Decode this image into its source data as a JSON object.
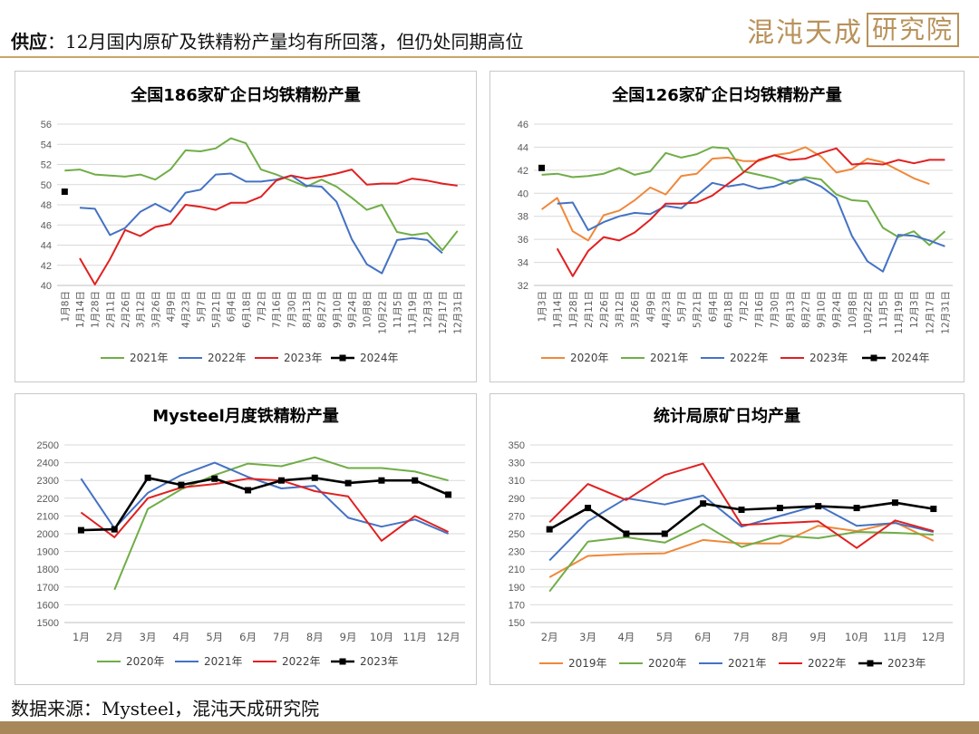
{
  "header": {
    "label": "供应",
    "separator": "：",
    "text": "12月国内原矿及铁精粉产量均有所回落，但仍处同期高位",
    "logo_text": "混沌天成",
    "logo_box_text": "研究院"
  },
  "footer": {
    "source": "数据来源：Mysteel，混沌天成研究院"
  },
  "colors": {
    "orange": "#f0883a",
    "green": "#70ad47",
    "blue": "#4472c4",
    "red": "#e02020",
    "black": "#000000",
    "gold": "#b8925a"
  },
  "chart_data": [
    {
      "type": "line",
      "title": "全国186家矿企日均铁精粉产量",
      "categories": [
        "1月8日",
        "1月14日",
        "1月28日",
        "2月11日",
        "2月26日",
        "3月12日",
        "3月26日",
        "4月9日",
        "4月23日",
        "5月7日",
        "5月21日",
        "6月4日",
        "6月18日",
        "7月2日",
        "7月16日",
        "7月30日",
        "8月13日",
        "8月27日",
        "9月10日",
        "9月24日",
        "10月8日",
        "10月22日",
        "11月5日",
        "11月19日",
        "12月3日",
        "12月17日",
        "12月31日"
      ],
      "ylim": [
        40,
        56
      ],
      "yticks": [
        "40",
        "42",
        "44",
        "46",
        "48",
        "50",
        "52",
        "54",
        "56"
      ],
      "series": [
        {
          "name": "2021年",
          "color": "#70ad47",
          "values": [
            51.4,
            51.5,
            51.0,
            50.9,
            50.8,
            51.0,
            50.5,
            51.5,
            53.4,
            53.3,
            53.6,
            54.6,
            54.1,
            51.5,
            51.0,
            50.4,
            49.8,
            50.5,
            49.8,
            48.7,
            47.5,
            48.0,
            45.3,
            45.0,
            45.2,
            43.5,
            45.4
          ]
        },
        {
          "name": "2022年",
          "color": "#4472c4",
          "values": [
            null,
            47.7,
            47.6,
            45.0,
            45.7,
            47.3,
            48.1,
            47.3,
            49.2,
            49.5,
            51.0,
            51.1,
            50.3,
            50.3,
            50.5,
            50.9,
            49.9,
            49.8,
            48.3,
            44.6,
            42.1,
            41.2,
            44.5,
            44.7,
            44.5,
            43.2,
            null
          ]
        },
        {
          "name": "2023年",
          "color": "#e02020",
          "values": [
            null,
            42.7,
            40.1,
            42.6,
            45.5,
            44.9,
            45.8,
            46.1,
            48.0,
            47.8,
            47.5,
            48.2,
            48.2,
            48.8,
            50.4,
            50.9,
            50.6,
            50.8,
            51.1,
            51.5,
            50.0,
            50.1,
            50.1,
            50.6,
            50.4,
            50.1,
            49.9
          ]
        },
        {
          "name": "2024年",
          "color": "#000000",
          "marker": true,
          "values": [
            49.3,
            null,
            null,
            null,
            null,
            null,
            null,
            null,
            null,
            null,
            null,
            null,
            null,
            null,
            null,
            null,
            null,
            null,
            null,
            null,
            null,
            null,
            null,
            null,
            null,
            null,
            null
          ]
        }
      ]
    },
    {
      "type": "line",
      "title": "全国126家矿企日均铁精粉产量",
      "categories": [
        "1月3日",
        "1月14日",
        "1月28日",
        "2月11日",
        "2月26日",
        "3月12日",
        "3月26日",
        "4月9日",
        "4月23日",
        "5月7日",
        "5月21日",
        "6月4日",
        "6月18日",
        "7月2日",
        "7月16日",
        "7月30日",
        "8月13日",
        "8月27日",
        "9月10日",
        "9月24日",
        "10月8日",
        "10月22日",
        "11月5日",
        "11月19日",
        "12月3日",
        "12月17日",
        "12月31日"
      ],
      "ylim": [
        32,
        46
      ],
      "yticks": [
        "32",
        "34",
        "36",
        "38",
        "40",
        "42",
        "44",
        "46"
      ],
      "series": [
        {
          "name": "2020年",
          "color": "#f0883a",
          "values": [
            38.6,
            39.6,
            36.7,
            35.9,
            38.1,
            38.5,
            39.4,
            40.5,
            39.9,
            41.5,
            41.7,
            43.0,
            43.1,
            42.8,
            42.8,
            43.3,
            43.5,
            44.0,
            43.2,
            41.8,
            42.1,
            43.0,
            42.7,
            42.0,
            41.3,
            40.8,
            null
          ]
        },
        {
          "name": "2021年",
          "color": "#70ad47",
          "values": [
            41.6,
            41.7,
            41.4,
            41.5,
            41.7,
            42.2,
            41.6,
            41.9,
            43.5,
            43.1,
            43.4,
            44.0,
            43.9,
            41.9,
            41.6,
            41.3,
            40.8,
            41.4,
            41.2,
            39.9,
            39.4,
            39.3,
            37.0,
            36.2,
            36.7,
            35.5,
            36.7
          ]
        },
        {
          "name": "2022年",
          "color": "#4472c4",
          "values": [
            null,
            39.1,
            39.2,
            36.8,
            37.5,
            38.0,
            38.3,
            38.2,
            38.9,
            38.7,
            39.8,
            40.9,
            40.6,
            40.8,
            40.4,
            40.6,
            41.1,
            41.2,
            40.6,
            39.6,
            36.3,
            34.1,
            33.2,
            36.4,
            36.3,
            35.9,
            35.4
          ]
        },
        {
          "name": "2023年",
          "color": "#e02020",
          "values": [
            null,
            35.2,
            32.8,
            35.0,
            36.2,
            35.9,
            36.6,
            37.7,
            39.1,
            39.1,
            39.2,
            39.8,
            40.8,
            41.8,
            42.9,
            43.3,
            42.9,
            43.0,
            43.5,
            43.9,
            42.5,
            42.6,
            42.5,
            42.9,
            42.6,
            42.9,
            42.9
          ]
        },
        {
          "name": "2024年",
          "color": "#000000",
          "marker": true,
          "values": [
            42.2,
            null,
            null,
            null,
            null,
            null,
            null,
            null,
            null,
            null,
            null,
            null,
            null,
            null,
            null,
            null,
            null,
            null,
            null,
            null,
            null,
            null,
            null,
            null,
            null,
            null,
            null
          ]
        }
      ]
    },
    {
      "type": "line",
      "title": "Mysteel月度铁精粉产量",
      "categories": [
        "1月",
        "2月",
        "3月",
        "4月",
        "5月",
        "6月",
        "7月",
        "8月",
        "9月",
        "10月",
        "11月",
        "12月"
      ],
      "ylim": [
        1500,
        2500
      ],
      "yticks": [
        "1500",
        "1600",
        "1700",
        "1800",
        "1900",
        "2000",
        "2100",
        "2200",
        "2300",
        "2400",
        "2500"
      ],
      "series": [
        {
          "name": "2020年",
          "color": "#70ad47",
          "values": [
            null,
            1685,
            2140,
            2250,
            2330,
            2395,
            2380,
            2430,
            2370,
            2370,
            2350,
            2300
          ]
        },
        {
          "name": "2021年",
          "color": "#4472c4",
          "values": [
            2310,
            2030,
            2230,
            2330,
            2400,
            2320,
            2255,
            2270,
            2090,
            2040,
            2080,
            2000
          ]
        },
        {
          "name": "2022年",
          "color": "#e02020",
          "values": [
            2120,
            1980,
            2200,
            2260,
            2280,
            2310,
            2300,
            2240,
            2210,
            1960,
            2100,
            2010
          ]
        },
        {
          "name": "2023年",
          "color": "#000000",
          "marker": true,
          "values": [
            2020,
            2025,
            2315,
            2275,
            2310,
            2245,
            2300,
            2315,
            2285,
            2300,
            2300,
            2220
          ]
        }
      ]
    },
    {
      "type": "line",
      "title": "统计局原矿日均产量",
      "categories": [
        "2月",
        "3月",
        "4月",
        "5月",
        "6月",
        "7月",
        "8月",
        "9月",
        "10月",
        "11月",
        "12月"
      ],
      "ylim": [
        150,
        350
      ],
      "yticks": [
        "150",
        "170",
        "190",
        "210",
        "230",
        "250",
        "270",
        "290",
        "310",
        "330",
        "350"
      ],
      "series": [
        {
          "name": "2019年",
          "color": "#f0883a",
          "values": [
            201,
            225,
            227,
            228,
            243,
            239,
            239,
            259,
            253,
            263,
            242
          ]
        },
        {
          "name": "2020年",
          "color": "#70ad47",
          "values": [
            185,
            241,
            246,
            240,
            261,
            235,
            248,
            245,
            252,
            251,
            249
          ]
        },
        {
          "name": "2021年",
          "color": "#4472c4",
          "values": [
            220,
            264,
            290,
            283,
            293,
            258,
            270,
            282,
            259,
            262,
            252
          ]
        },
        {
          "name": "2022年",
          "color": "#e02020",
          "values": [
            263,
            306,
            288,
            316,
            329,
            260,
            262,
            264,
            234,
            265,
            253
          ]
        },
        {
          "name": "2023年",
          "color": "#000000",
          "marker": true,
          "values": [
            255,
            279,
            250,
            250,
            284,
            277,
            279,
            281,
            279,
            285,
            278
          ]
        }
      ]
    }
  ]
}
